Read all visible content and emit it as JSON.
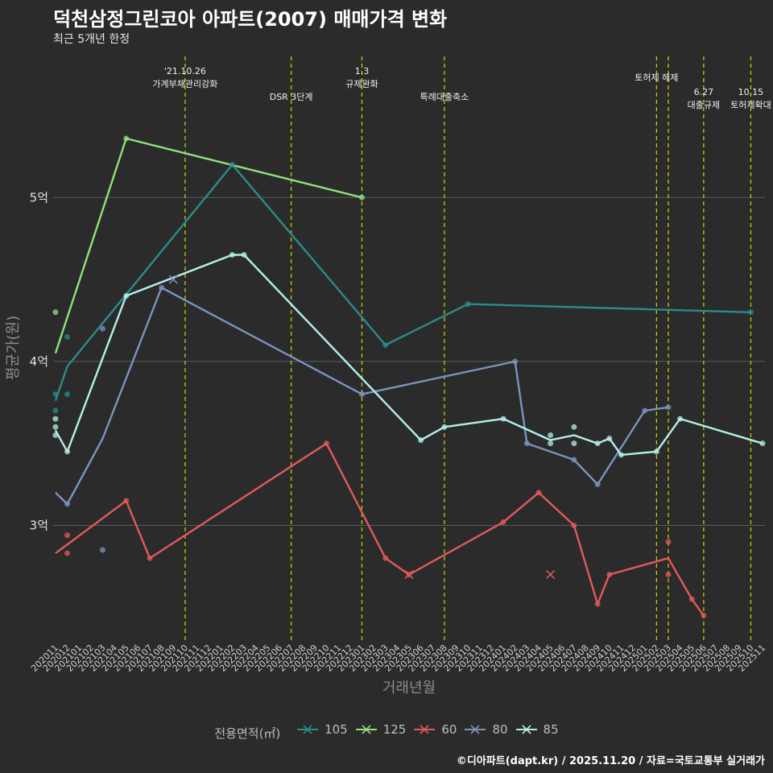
{
  "header": {
    "title": "덕천삼정그린코아 아파트(2007) 매매가격 변화",
    "subtitle": "최근 5개년 한정",
    "caption": "©디아파트(dapt.kr) / 2025.11.20 / 자료=국토교통부 실거래가"
  },
  "chart_data": {
    "type": "line",
    "title": "덕천삼정그린코아 아파트(2007) 매매가격 변화",
    "subtitle": "최근 5개년 한정",
    "xlabel": "거래년월",
    "ylabel": "평균가(원)",
    "y_unit": "억",
    "ylim": [
      2.3,
      5.9
    ],
    "y_ticks": [
      3,
      4,
      5
    ],
    "y_tick_labels": [
      "3억",
      "4억",
      "5억"
    ],
    "months": [
      "202011",
      "202012",
      "202101",
      "202102",
      "202103",
      "202104",
      "202105",
      "202106",
      "202107",
      "202108",
      "202109",
      "202110",
      "202111",
      "202112",
      "202201",
      "202202",
      "202203",
      "202204",
      "202205",
      "202206",
      "202207",
      "202208",
      "202209",
      "202210",
      "202211",
      "202212",
      "202301",
      "202302",
      "202303",
      "202304",
      "202305",
      "202306",
      "202307",
      "202308",
      "202309",
      "202310",
      "202311",
      "202312",
      "202401",
      "202402",
      "202403",
      "202404",
      "202405",
      "202406",
      "202407",
      "202408",
      "202409",
      "202410",
      "202411",
      "202412",
      "202501",
      "202502",
      "202503",
      "202504",
      "202505",
      "202506",
      "202507",
      "202508",
      "202509",
      "202510",
      "202511"
    ],
    "events": [
      {
        "month": "202110",
        "label": "'21.10.26\n가계부채관리강화",
        "level": 0
      },
      {
        "month": "202207",
        "label": "DSR 3단계",
        "level": 2
      },
      {
        "month": "202301",
        "label": "1.3\n규제완화",
        "level": 0
      },
      {
        "month": "202308",
        "label": "특례대출축소",
        "level": 2
      },
      {
        "month": "202502",
        "label": "토허제 해제",
        "level": 1
      },
      {
        "month": "202503",
        "label": "",
        "level": 1
      },
      {
        "month": "202506",
        "label": "6.27\n대출규제",
        "level": 1
      },
      {
        "month": "202510",
        "label": "10.15\n토허제확대",
        "level": 1
      }
    ],
    "legend_title": "전용면적(㎡)",
    "series": [
      {
        "name": "105",
        "color": "#2a8c8c",
        "values": [
          [
            "202011",
            3.76
          ],
          [
            "202012",
            3.97
          ],
          [
            "202202",
            5.2
          ],
          [
            "202303",
            4.1
          ],
          [
            "202310",
            4.35
          ],
          [
            "202510",
            4.3
          ]
        ],
        "points": [
          [
            "202011",
            3.8
          ],
          [
            "202011",
            3.7
          ],
          [
            "202012",
            4.15
          ],
          [
            "202012",
            3.8
          ],
          [
            "202202",
            5.2
          ],
          [
            "202303",
            4.1
          ],
          [
            "202310",
            4.35
          ],
          [
            "202510",
            4.3
          ]
        ]
      },
      {
        "name": "125",
        "color": "#90e07c",
        "values": [
          [
            "202011",
            4.05
          ],
          [
            "202105",
            5.36
          ],
          [
            "202301",
            5.0
          ]
        ],
        "points": [
          [
            "202011",
            4.3
          ],
          [
            "202105",
            5.36
          ],
          [
            "202301",
            5.0
          ]
        ],
        "crosses": []
      },
      {
        "name": "60",
        "color": "#e05a5a",
        "values": [
          [
            "202011",
            2.83
          ],
          [
            "202105",
            3.15
          ],
          [
            "202107",
            2.8
          ],
          [
            "202210",
            3.5
          ],
          [
            "202303",
            2.8
          ],
          [
            "202305",
            2.7
          ],
          [
            "202401",
            3.02
          ],
          [
            "202404",
            3.2
          ],
          [
            "202407",
            3.0
          ],
          [
            "202409",
            2.52
          ],
          [
            "202410",
            2.7
          ],
          [
            "202503",
            2.8
          ],
          [
            "202505",
            2.55
          ],
          [
            "202506",
            2.45
          ]
        ],
        "points": [
          [
            "202012",
            2.94
          ],
          [
            "202012",
            2.83
          ],
          [
            "202105",
            3.15
          ],
          [
            "202107",
            2.8
          ],
          [
            "202210",
            3.5
          ],
          [
            "202303",
            2.8
          ],
          [
            "202305",
            2.7
          ],
          [
            "202401",
            3.02
          ],
          [
            "202404",
            3.2
          ],
          [
            "202407",
            3.0
          ],
          [
            "202409",
            2.52
          ],
          [
            "202410",
            2.7
          ],
          [
            "202503",
            2.9
          ],
          [
            "202503",
            2.7
          ],
          [
            "202505",
            2.55
          ],
          [
            "202506",
            2.45
          ]
        ],
        "crosses": [
          [
            "202305",
            2.7
          ],
          [
            "202405",
            2.7
          ]
        ]
      },
      {
        "name": "80",
        "color": "#7b93bf",
        "values": [
          [
            "202011",
            3.2
          ],
          [
            "202012",
            3.13
          ],
          [
            "202103",
            3.53
          ],
          [
            "202108",
            4.45
          ],
          [
            "202301",
            3.8
          ],
          [
            "202402",
            4.0
          ],
          [
            "202403",
            3.5
          ],
          [
            "202407",
            3.4
          ],
          [
            "202409",
            3.25
          ],
          [
            "202501",
            3.7
          ],
          [
            "202503",
            3.72
          ]
        ],
        "points": [
          [
            "202012",
            3.13
          ],
          [
            "202103",
            4.2
          ],
          [
            "202103",
            2.85
          ],
          [
            "202108",
            4.45
          ],
          [
            "202301",
            3.8
          ],
          [
            "202402",
            4.0
          ],
          [
            "202403",
            3.5
          ],
          [
            "202407",
            3.4
          ],
          [
            "202409",
            3.25
          ],
          [
            "202501",
            3.7
          ],
          [
            "202503",
            3.72
          ]
        ],
        "crosses": [
          [
            "202109",
            4.5
          ]
        ]
      },
      {
        "name": "85",
        "color": "#b3f0ea",
        "values": [
          [
            "202011",
            3.58
          ],
          [
            "202012",
            3.45
          ],
          [
            "202105",
            4.4
          ],
          [
            "202202",
            4.65
          ],
          [
            "202203",
            4.65
          ],
          [
            "202306",
            3.52
          ],
          [
            "202308",
            3.6
          ],
          [
            "202401",
            3.65
          ],
          [
            "202405",
            3.52
          ],
          [
            "202407",
            3.55
          ],
          [
            "202409",
            3.5
          ],
          [
            "202410",
            3.53
          ],
          [
            "202411",
            3.43
          ],
          [
            "202502",
            3.45
          ],
          [
            "202504",
            3.65
          ],
          [
            "202511",
            3.5
          ]
        ],
        "points": [
          [
            "202011",
            3.65
          ],
          [
            "202011",
            3.6
          ],
          [
            "202011",
            3.55
          ],
          [
            "202012",
            3.45
          ],
          [
            "202105",
            4.4
          ],
          [
            "202202",
            4.65
          ],
          [
            "202203",
            4.65
          ],
          [
            "202306",
            3.52
          ],
          [
            "202308",
            3.6
          ],
          [
            "202401",
            3.65
          ],
          [
            "202405",
            3.55
          ],
          [
            "202405",
            3.5
          ],
          [
            "202407",
            3.6
          ],
          [
            "202407",
            3.5
          ],
          [
            "202409",
            3.5
          ],
          [
            "202410",
            3.53
          ],
          [
            "202411",
            3.43
          ],
          [
            "202502",
            3.45
          ],
          [
            "202504",
            3.65
          ],
          [
            "202511",
            3.5
          ]
        ],
        "crosses": []
      }
    ]
  }
}
